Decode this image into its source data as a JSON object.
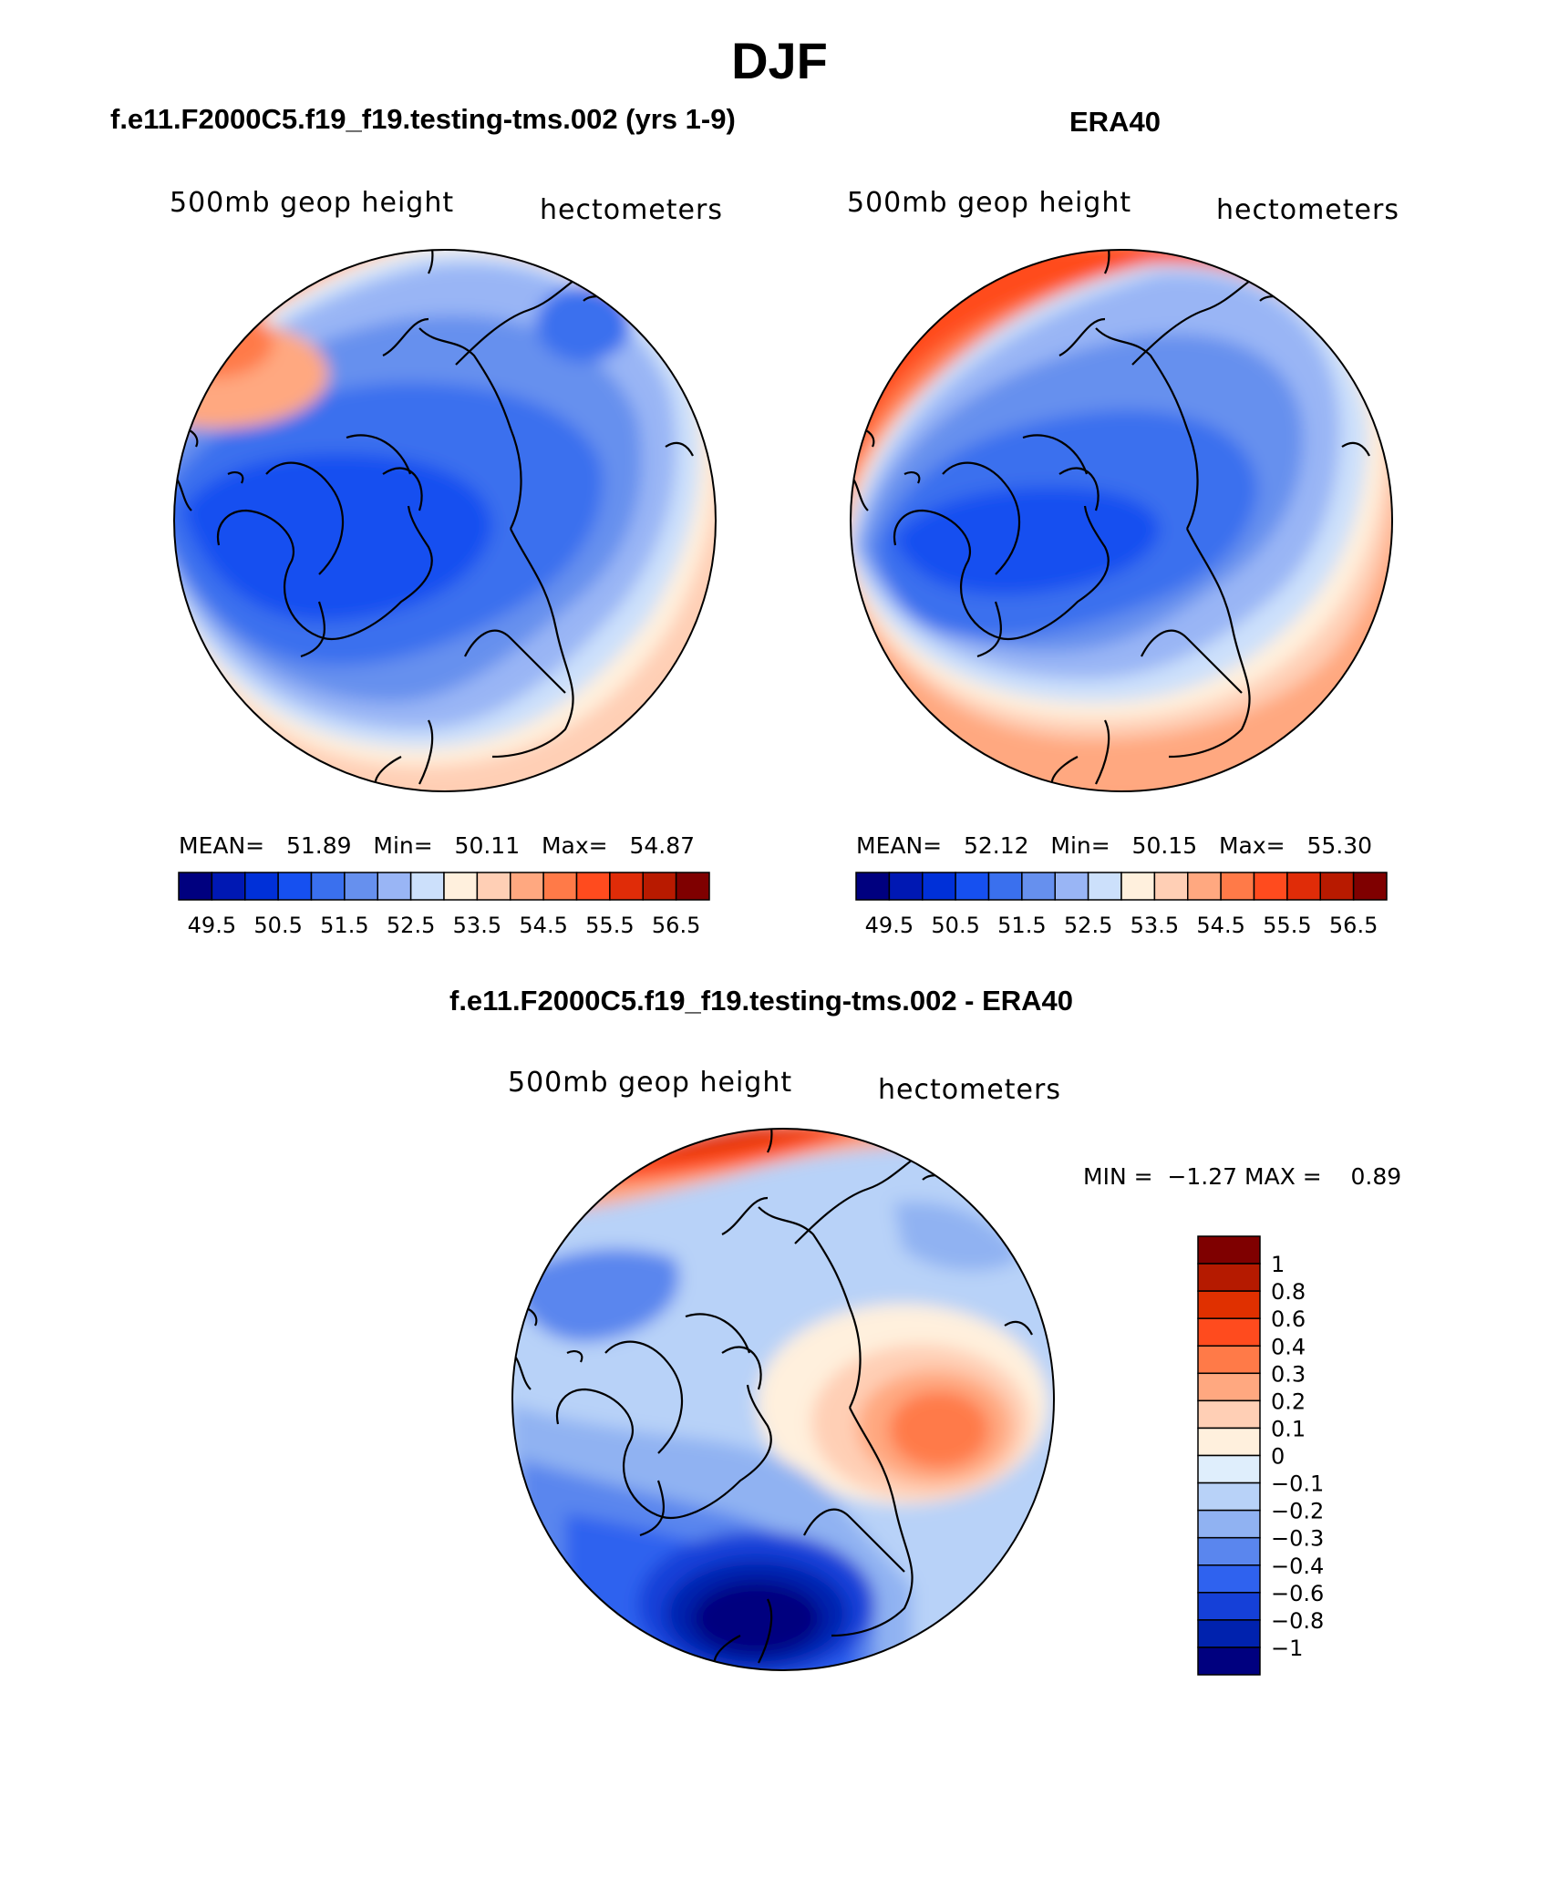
{
  "figure": {
    "season": "DJF"
  },
  "panels": {
    "model": {
      "case_title": "f.e11.F2000C5.f19_f19.testing-tms.002 (yrs 1-9)",
      "variable": "500mb geop height",
      "units": "hectometers",
      "stats": {
        "mean_label": "MEAN=",
        "mean": "51.89",
        "min_label": "Min=",
        "min": "50.11",
        "max_label": "Max=",
        "max": "54.87"
      }
    },
    "obs": {
      "case_title": "ERA40",
      "variable": "500mb geop height",
      "units": "hectometers",
      "stats": {
        "mean_label": "MEAN=",
        "mean": "52.12",
        "min_label": "Min=",
        "min": "50.15",
        "max_label": "Max=",
        "max": "55.30"
      }
    },
    "diff": {
      "case_title": "f.e11.F2000C5.f19_f19.testing-tms.002 - ERA40",
      "variable": "500mb geop height",
      "units": "hectometers",
      "stats": {
        "min_label": "MIN =",
        "min": "−1.27",
        "max_label": "MAX =",
        "max": "0.89"
      }
    }
  },
  "colorbars": {
    "height": {
      "colors": [
        "#00007f",
        "#0018b3",
        "#0030d8",
        "#1650f0",
        "#3a70ee",
        "#6690ee",
        "#99b5f5",
        "#cce0fb",
        "#fff0dd",
        "#ffcfb5",
        "#ffa880",
        "#ff7a48",
        "#ff4b1e",
        "#e02c08",
        "#b81a00",
        "#7f0000"
      ],
      "labels": [
        "49.5",
        "50.5",
        "51.5",
        "52.5",
        "53.5",
        "54.5",
        "55.5",
        "56.5"
      ]
    },
    "diff": {
      "colors": [
        "#7f0000",
        "#b51a00",
        "#e03000",
        "#ff4b1e",
        "#ff7a48",
        "#ffa880",
        "#ffcfb5",
        "#fff0dd",
        "#dfeefc",
        "#b8d2f8",
        "#90b2f2",
        "#5a86ee",
        "#2f62ef",
        "#1540d8",
        "#0022ae",
        "#00007f"
      ],
      "labels": [
        "1",
        "0.8",
        "0.6",
        "0.4",
        "0.3",
        "0.2",
        "0.1",
        "0",
        "−0.1",
        "−0.2",
        "−0.3",
        "−0.4",
        "−0.6",
        "−0.8",
        "−1"
      ]
    }
  }
}
